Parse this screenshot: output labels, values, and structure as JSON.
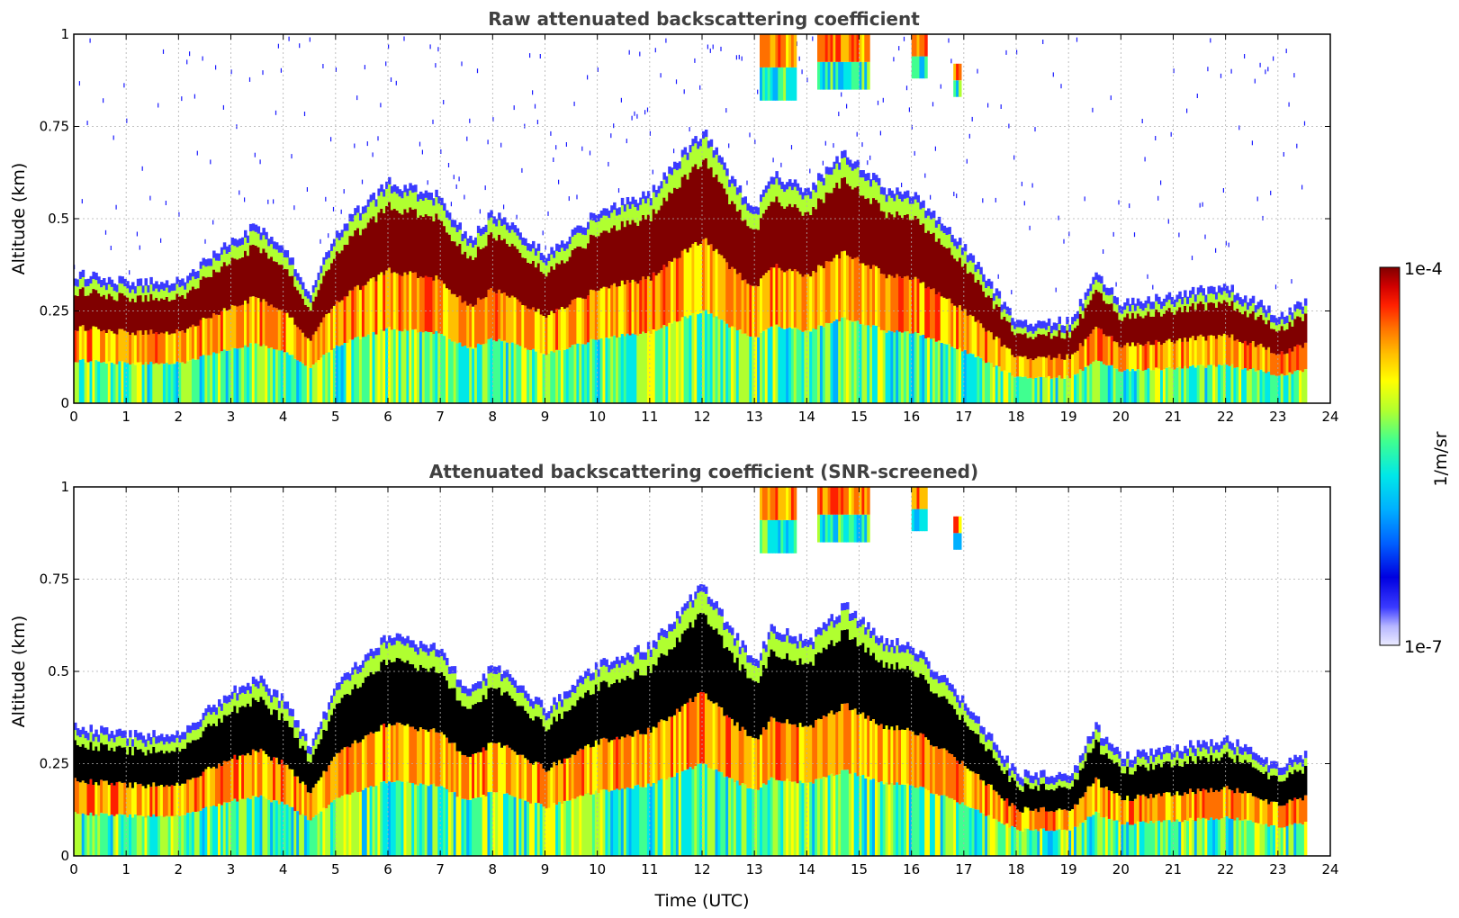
{
  "chart_data": [
    {
      "type": "heatmap",
      "title": "Raw attenuated backscattering coefficient",
      "xlabel": "",
      "ylabel": "Altitude (km)",
      "xlim": [
        0,
        24
      ],
      "ylim": [
        0,
        1
      ],
      "x_ticks": [
        "0",
        "1",
        "2",
        "3",
        "4",
        "5",
        "6",
        "7",
        "8",
        "9",
        "10",
        "11",
        "12",
        "13",
        "14",
        "15",
        "16",
        "17",
        "18",
        "19",
        "20",
        "21",
        "22",
        "23",
        "24"
      ],
      "y_ticks": [
        "0",
        "0.25",
        "0.5",
        "0.75",
        "1"
      ],
      "grid": true,
      "data_end_hour": 23.55,
      "layer_top_km": [
        [
          0,
          0.33
        ],
        [
          1,
          0.31
        ],
        [
          2,
          0.31
        ],
        [
          3,
          0.43
        ],
        [
          3.5,
          0.46
        ],
        [
          4,
          0.4
        ],
        [
          4.5,
          0.28
        ],
        [
          5,
          0.45
        ],
        [
          6,
          0.58
        ],
        [
          7,
          0.54
        ],
        [
          7.5,
          0.42
        ],
        [
          8,
          0.5
        ],
        [
          9,
          0.38
        ],
        [
          10,
          0.5
        ],
        [
          11,
          0.55
        ],
        [
          12,
          0.72
        ],
        [
          12.5,
          0.6
        ],
        [
          13,
          0.5
        ],
        [
          13.3,
          0.6
        ],
        [
          14,
          0.56
        ],
        [
          14.7,
          0.66
        ],
        [
          15.5,
          0.56
        ],
        [
          16,
          0.55
        ],
        [
          17,
          0.4
        ],
        [
          18,
          0.2
        ],
        [
          19,
          0.2
        ],
        [
          19.5,
          0.33
        ],
        [
          20,
          0.25
        ],
        [
          21,
          0.27
        ],
        [
          22,
          0.3
        ],
        [
          23,
          0.22
        ],
        [
          23.55,
          0.26
        ]
      ],
      "high_cloud_features": [
        {
          "start": 13.1,
          "end": 13.8,
          "bottom_km": 0.82,
          "top_km": 1.0
        },
        {
          "start": 14.2,
          "end": 15.2,
          "bottom_km": 0.85,
          "top_km": 1.0
        },
        {
          "start": 16.0,
          "end": 16.3,
          "bottom_km": 0.88,
          "top_km": 1.0
        },
        {
          "start": 16.8,
          "end": 16.95,
          "bottom_km": 0.83,
          "top_km": 0.92
        }
      ]
    },
    {
      "type": "heatmap",
      "title": "Attenuated backscattering coefficient (SNR-screened)",
      "xlabel": "Time (UTC)",
      "ylabel": "Altitude (km)",
      "xlim": [
        0,
        24
      ],
      "ylim": [
        0,
        1
      ],
      "x_ticks": [
        "0",
        "1",
        "2",
        "3",
        "4",
        "5",
        "6",
        "7",
        "8",
        "9",
        "10",
        "11",
        "12",
        "13",
        "14",
        "15",
        "16",
        "17",
        "18",
        "19",
        "20",
        "21",
        "22",
        "23",
        "24"
      ],
      "y_ticks": [
        "0",
        "0.25",
        "0.5",
        "0.75",
        "1"
      ],
      "grid": true
    }
  ],
  "colorbar": {
    "label": "1/m/sr",
    "max_label": "1e-4",
    "min_label": "1e-7",
    "colors": [
      "#ebebff",
      "#b7b7ff",
      "#3b3bff",
      "#0000e0",
      "#0060ff",
      "#00b0ff",
      "#00e8e8",
      "#40ff90",
      "#b0ff30",
      "#ffff00",
      "#ffc000",
      "#ff7000",
      "#ff2000",
      "#d00000",
      "#800000"
    ]
  }
}
